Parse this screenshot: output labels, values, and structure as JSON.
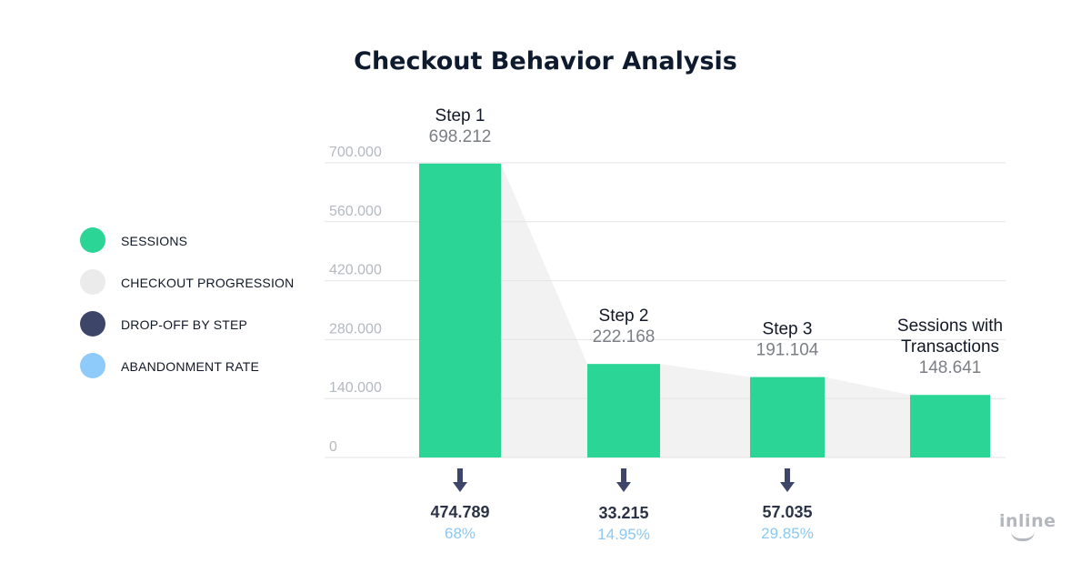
{
  "title": "Checkout Behavior Analysis",
  "legend": [
    {
      "label": "SESSIONS",
      "color": "#2ad595"
    },
    {
      "label": "CHECKOUT PROGRESSION",
      "color": "#ebebeb"
    },
    {
      "label": "DROP-OFF BY STEP",
      "color": "#3d4668"
    },
    {
      "label": "ABANDONMENT RATE",
      "color": "#8ecbfb"
    }
  ],
  "logo": "inline",
  "chart_data": {
    "type": "bar",
    "title": "Checkout Behavior Analysis",
    "categories": [
      "Step 1",
      "Step 2",
      "Step 3",
      "Sessions with Transactions"
    ],
    "category_lines": [
      [
        "Step 1"
      ],
      [
        "Step 2"
      ],
      [
        "Step 3"
      ],
      [
        "Sessions with",
        "Transactions"
      ]
    ],
    "values": [
      698212,
      222168,
      191104,
      148641
    ],
    "value_labels": [
      "698.212",
      "222.168",
      "191.104",
      "148.641"
    ],
    "drop_off": [
      474789,
      33215,
      57035
    ],
    "drop_off_labels": [
      "474.789",
      "33.215",
      "57.035"
    ],
    "abandonment_rate_labels": [
      "68%",
      "14.95%",
      "29.85%"
    ],
    "ylim": [
      0,
      700000
    ],
    "yticks": [
      0,
      140000,
      280000,
      420000,
      560000,
      700000
    ],
    "ytick_labels": [
      "0",
      "140.000",
      "280.000",
      "420.000",
      "560.000",
      "700.000"
    ],
    "grid": true,
    "legend_position": "left",
    "colors": {
      "bar": "#2ad595",
      "progression": "#f2f2f2",
      "arrow": "#3d4668",
      "rate": "#8ecbfb"
    }
  }
}
